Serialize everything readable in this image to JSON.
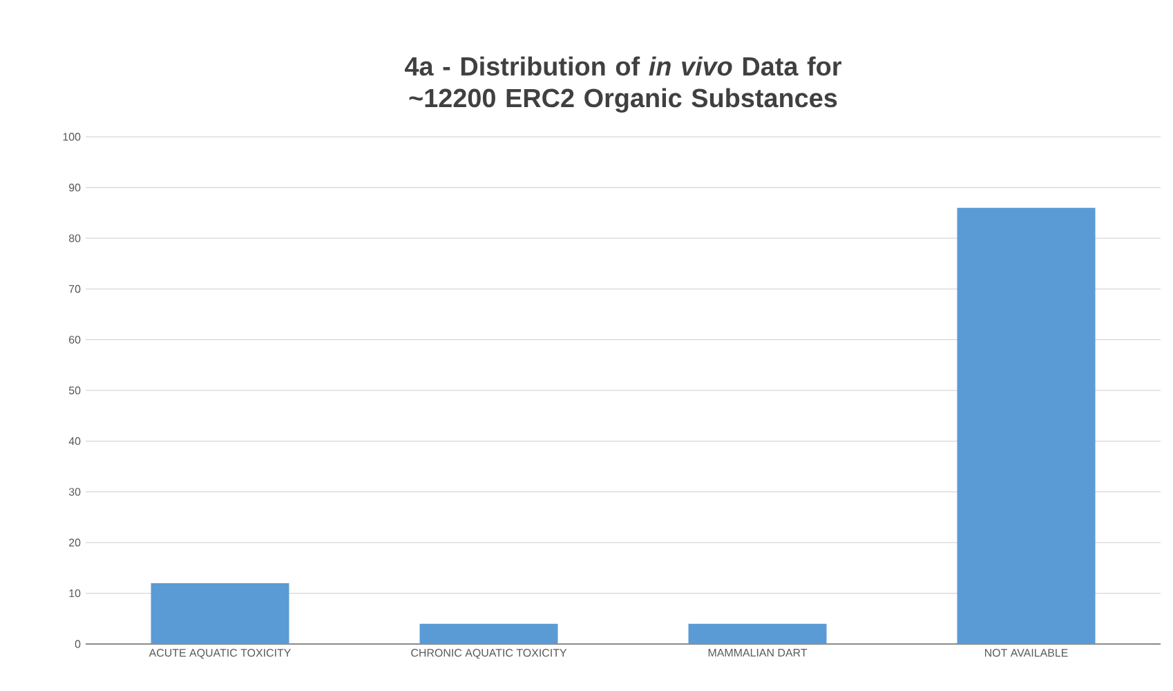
{
  "chart_data": {
    "type": "bar",
    "title": "4a - Distribution of *in vivo* Data for ~12200 ERC2 Organic Substances",
    "categories": [
      "ACUTE AQUATIC TOXICITY",
      "CHRONIC AQUATIC TOXICITY",
      "MAMMALIAN DART",
      "NOT AVAILABLE"
    ],
    "values": [
      12,
      4,
      4,
      86
    ],
    "color": "#5b9bd5",
    "ylim": [
      0,
      100
    ],
    "yticks": [
      0,
      10,
      20,
      30,
      40,
      50,
      60,
      70,
      80,
      90,
      100
    ],
    "grid": "y"
  }
}
